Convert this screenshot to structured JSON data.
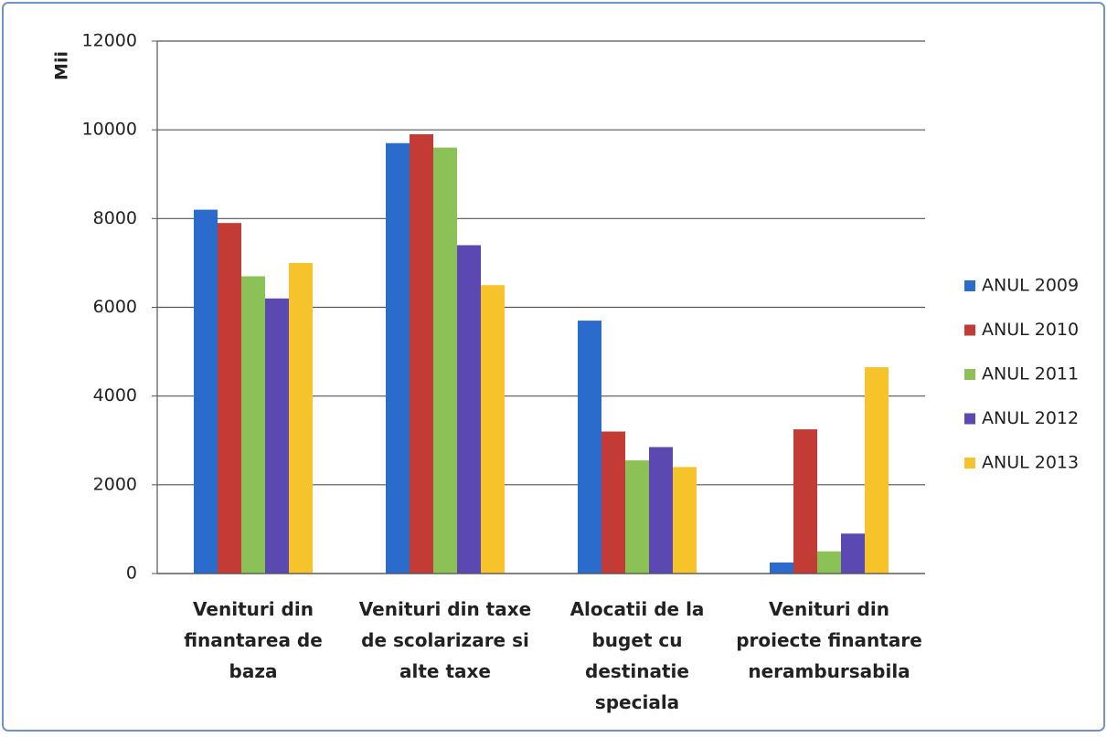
{
  "chart_data": {
    "type": "bar",
    "y_label": "Mii",
    "categories": [
      "Venituri din finantarea de baza",
      "Venituri din taxe de scolarizare si alte taxe",
      "Alocatii de la buget cu destinatie speciala",
      "Venituri din proiecte finantare nerambursabila"
    ],
    "series": [
      {
        "name": "ANUL 2009",
        "color": "#2a6bcc",
        "values": [
          8200,
          9700,
          5700,
          250
        ]
      },
      {
        "name": "ANUL 2010",
        "color": "#c23b35",
        "values": [
          7900,
          9900,
          3200,
          3250
        ]
      },
      {
        "name": "ANUL 2011",
        "color": "#8cc157",
        "values": [
          6700,
          9600,
          2550,
          500
        ]
      },
      {
        "name": "ANUL 2012",
        "color": "#5b48b0",
        "values": [
          6200,
          7400,
          2850,
          900
        ]
      },
      {
        "name": "ANUL 2013",
        "color": "#f6c42a",
        "values": [
          7000,
          6500,
          2400,
          4650
        ]
      }
    ],
    "ylim": [
      0,
      12000
    ],
    "yticks": [
      0,
      2000,
      4000,
      6000,
      8000,
      10000,
      12000
    ],
    "grid": true,
    "legend": "right"
  }
}
